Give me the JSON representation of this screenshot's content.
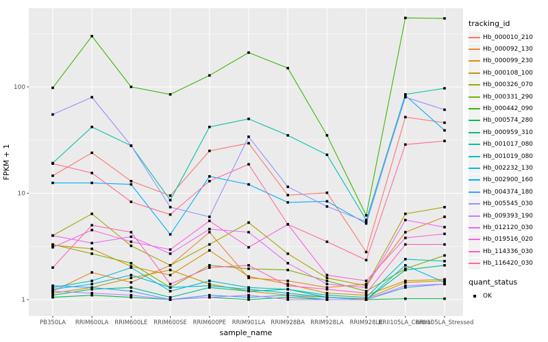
{
  "chart_data": {
    "type": "line",
    "xlabel": "sample_name",
    "ylabel": "FPKM + 1",
    "y_scale": "log10",
    "y_ticks": [
      1,
      10,
      100
    ],
    "ylim": [
      0.93,
      530
    ],
    "grid": "on",
    "panel_bg": "#ebebeb",
    "grid_color": "#ffffff",
    "axis_text_color": "#4d4d4d",
    "point_marker": "black-square",
    "x_categories": [
      "PB350LA",
      "RRIM600LA",
      "RRIM600LE",
      "RRIM600SE",
      "RRIM600PE",
      "RRIM901LA",
      "RRIM928BA",
      "RRIM928LA",
      "RRIM928LE",
      "RRII105LA_Control",
      "RRII105LA_Stressed"
    ],
    "series": [
      {
        "name": "Hb_000010_210",
        "color": "#F8766D",
        "values": [
          14.6,
          24,
          13,
          9.5,
          25,
          29.5,
          9.6,
          10.1,
          2.8,
          52,
          46
        ]
      },
      {
        "name": "Hb_000092_130",
        "color": "#EA8331",
        "values": [
          1.2,
          1.8,
          1.45,
          2.1,
          4.3,
          1.6,
          1.5,
          1.3,
          1.4,
          4.3,
          6.0
        ]
      },
      {
        "name": "Hb_000099_230",
        "color": "#D89000",
        "values": [
          3.25,
          3.0,
          2.05,
          1.7,
          2.9,
          1.65,
          1.4,
          1.15,
          1.1,
          1.5,
          1.55
        ]
      },
      {
        "name": "Hb_000108_100",
        "color": "#C09B00",
        "values": [
          1.15,
          1.3,
          1.6,
          1.9,
          1.4,
          1.2,
          1.1,
          1.05,
          1.02,
          1.45,
          1.5
        ]
      },
      {
        "name": "Hb_000326_070",
        "color": "#A3A500",
        "values": [
          4.0,
          6.4,
          3.2,
          2.1,
          3.3,
          5.3,
          2.7,
          1.6,
          1.35,
          6.4,
          7.4
        ]
      },
      {
        "name": "Hb_000331_290",
        "color": "#7CAE00",
        "values": [
          3.3,
          2.7,
          2.2,
          1.3,
          2.1,
          1.95,
          1.9,
          1.5,
          1.2,
          1.95,
          2.6
        ]
      },
      {
        "name": "Hb_000442_090",
        "color": "#39B600",
        "values": [
          98,
          300,
          100,
          85,
          128,
          210,
          150,
          35,
          6.2,
          445,
          440
        ]
      },
      {
        "name": "Hb_000574_280",
        "color": "#00BB4E",
        "values": [
          1.05,
          1.1,
          1.05,
          1.0,
          1.05,
          1.0,
          1.05,
          1.0,
          1.0,
          1.02,
          1.02
        ]
      },
      {
        "name": "Hb_000959_310",
        "color": "#00BF7D",
        "values": [
          1.1,
          1.25,
          1.3,
          1.05,
          1.3,
          1.2,
          1.25,
          1.05,
          1.0,
          1.9,
          2.1
        ]
      },
      {
        "name": "Hb_001017_080",
        "color": "#00C1A3",
        "values": [
          19.2,
          42,
          28,
          8.6,
          42,
          50,
          35,
          23,
          5.6,
          85,
          97
        ]
      },
      {
        "name": "Hb_001019_080",
        "color": "#00BFC4",
        "values": [
          1.3,
          1.5,
          2.0,
          1.2,
          1.5,
          1.3,
          1.25,
          1.1,
          1.05,
          2.4,
          2.3
        ]
      },
      {
        "name": "Hb_002232_130",
        "color": "#00BAE0",
        "values": [
          1.25,
          1.4,
          1.7,
          1.3,
          1.35,
          1.25,
          1.15,
          1.05,
          1.0,
          2.1,
          1.45
        ]
      },
      {
        "name": "Hb_002900_160",
        "color": "#00B0F6",
        "values": [
          12.5,
          12.5,
          12.1,
          4.1,
          14.4,
          12.1,
          8.2,
          8.4,
          5.2,
          83,
          39
        ]
      },
      {
        "name": "Hb_004374_180",
        "color": "#35A2FF",
        "values": [
          1.35,
          1.3,
          1.2,
          1.0,
          1.1,
          1.05,
          1.1,
          1.0,
          1.0,
          1.3,
          1.4
        ]
      },
      {
        "name": "Hb_005545_030",
        "color": "#9590FF",
        "values": [
          55,
          80,
          28,
          7.4,
          6.0,
          34,
          11.5,
          7.5,
          5.4,
          80,
          61
        ]
      },
      {
        "name": "Hb_009393_190",
        "color": "#C77CFF",
        "values": [
          1.2,
          1.15,
          1.1,
          1.0,
          1.05,
          1.1,
          1.0,
          1.0,
          1.0,
          1.35,
          1.4
        ]
      },
      {
        "name": "Hb_012120_030",
        "color": "#E76BF3",
        "values": [
          4.0,
          3.4,
          3.9,
          2.7,
          4.6,
          4.3,
          2.2,
          1.4,
          1.3,
          5.6,
          4.8
        ]
      },
      {
        "name": "Hb_019516_020",
        "color": "#FA62DB",
        "values": [
          3.1,
          4.5,
          3.5,
          2.95,
          5.5,
          3.1,
          5.1,
          1.7,
          1.5,
          3.8,
          4.15
        ]
      },
      {
        "name": "Hb_114336_030",
        "color": "#FF62BC",
        "values": [
          2.0,
          5.0,
          4.3,
          1.4,
          2.0,
          2.1,
          1.35,
          1.25,
          1.15,
          3.3,
          3.3
        ]
      },
      {
        "name": "Hb_116420_030",
        "color": "#FF6A98",
        "values": [
          19,
          15.5,
          8.3,
          6.3,
          13,
          18.7,
          5.1,
          3.5,
          2.35,
          28.7,
          31
        ]
      }
    ],
    "legend": {
      "series_title": "tracking_id",
      "status_title": "quant_status",
      "status_items": [
        {
          "label": "OK",
          "marker": "black-square"
        }
      ]
    }
  }
}
